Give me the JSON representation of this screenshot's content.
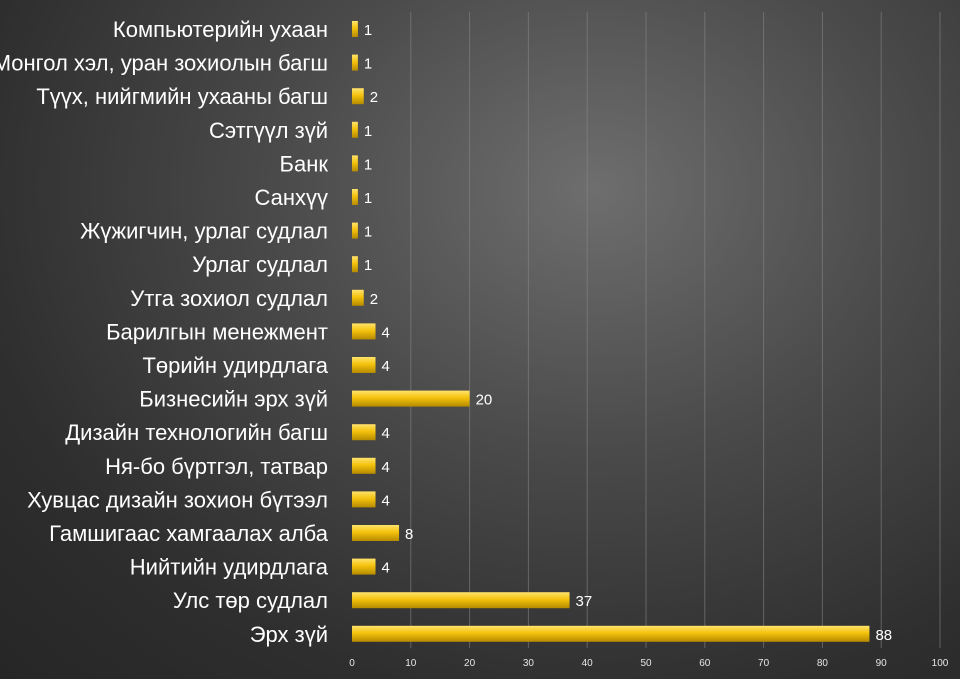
{
  "chart_data": {
    "type": "bar",
    "orientation": "horizontal",
    "categories": [
      "Компьютерийн ухаан",
      "Монгол хэл, уран зохиолын багш",
      "Түүх, нийгмийн ухааны багш",
      "Сэтгүүл зүй",
      "Банк",
      "Санхүү",
      "Жүжигчин, урлаг судлал",
      "Урлаг судлал",
      "Утга зохиол судлал",
      "Барилгын менежмент",
      "Төрийн удирдлага",
      "Бизнесийн эрх зүй",
      "Дизайн технологийн багш",
      "Ня-бо бүртгэл, татвар",
      "Хувцас дизайн зохион бүтээл",
      "Гамшигаас хамгаалах алба",
      "Нийтийн удирдлага",
      "Улс төр судлал",
      "Эрх зүй"
    ],
    "values": [
      1,
      1,
      2,
      1,
      1,
      1,
      1,
      1,
      2,
      4,
      4,
      20,
      4,
      4,
      4,
      8,
      4,
      37,
      88
    ],
    "x_ticks": [
      "0",
      "10",
      "20",
      "30",
      "40",
      "50",
      "60",
      "70",
      "80",
      "90",
      "100"
    ],
    "xlim": [
      0,
      100
    ],
    "title": "",
    "xlabel": "",
    "ylabel": "",
    "grid": "vertical",
    "legend": "none",
    "colors": {
      "bar": "#f4c20d",
      "bar_highlight": "#ffe36b",
      "bar_shadow": "#b58a00",
      "text": "#ffffff",
      "grid": "#8a8a8a"
    }
  }
}
